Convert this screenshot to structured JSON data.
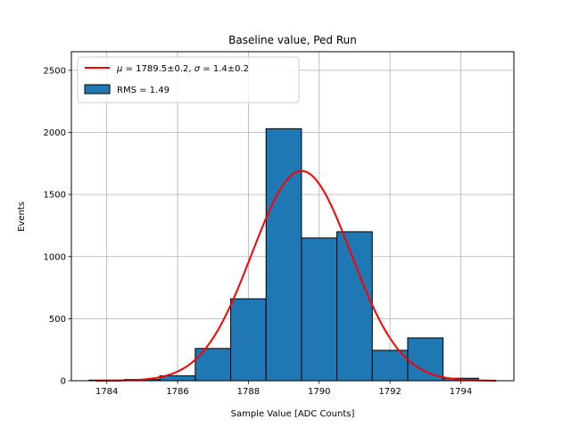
{
  "chart_data": {
    "type": "bar",
    "title": "Baseline value, Ped Run",
    "xlabel": "Sample Value [ADC Counts]",
    "ylabel": "Events",
    "xlim": [
      1783.0,
      1795.5
    ],
    "ylim": [
      0,
      2650
    ],
    "xticks": [
      1784,
      1786,
      1788,
      1790,
      1792,
      1794
    ],
    "yticks": [
      0,
      500,
      1000,
      1500,
      2000,
      2500
    ],
    "grid": true,
    "legend_position": "top-left",
    "histogram": {
      "name": "RMS = 1.49",
      "color": "#1f77b4",
      "edgecolor": "#000000",
      "bin_edges": [
        1783.5,
        1784.5,
        1785.5,
        1786.5,
        1787.5,
        1788.5,
        1789.5,
        1790.5,
        1791.5,
        1792.5,
        1793.5,
        1794.5
      ],
      "counts": [
        5,
        10,
        40,
        260,
        660,
        2030,
        1150,
        1200,
        245,
        345,
        20
      ]
    },
    "fit": {
      "name": "μ = 1789.5±0.2, σ = 1.4±0.2",
      "label_mu": "μ",
      "label_mu_value": "1789.5±0.2",
      "label_sigma": "σ",
      "label_sigma_value": "1.4±0.2",
      "color": "#ff0000",
      "amplitude": 1690,
      "mean": 1789.5,
      "sigma": 1.4,
      "x_range": [
        1783.7,
        1795.0
      ]
    },
    "legend": [
      {
        "kind": "line",
        "label": "μ = 1789.5±0.2, σ = 1.4±0.2"
      },
      {
        "kind": "patch",
        "label": "RMS = 1.49"
      }
    ]
  }
}
